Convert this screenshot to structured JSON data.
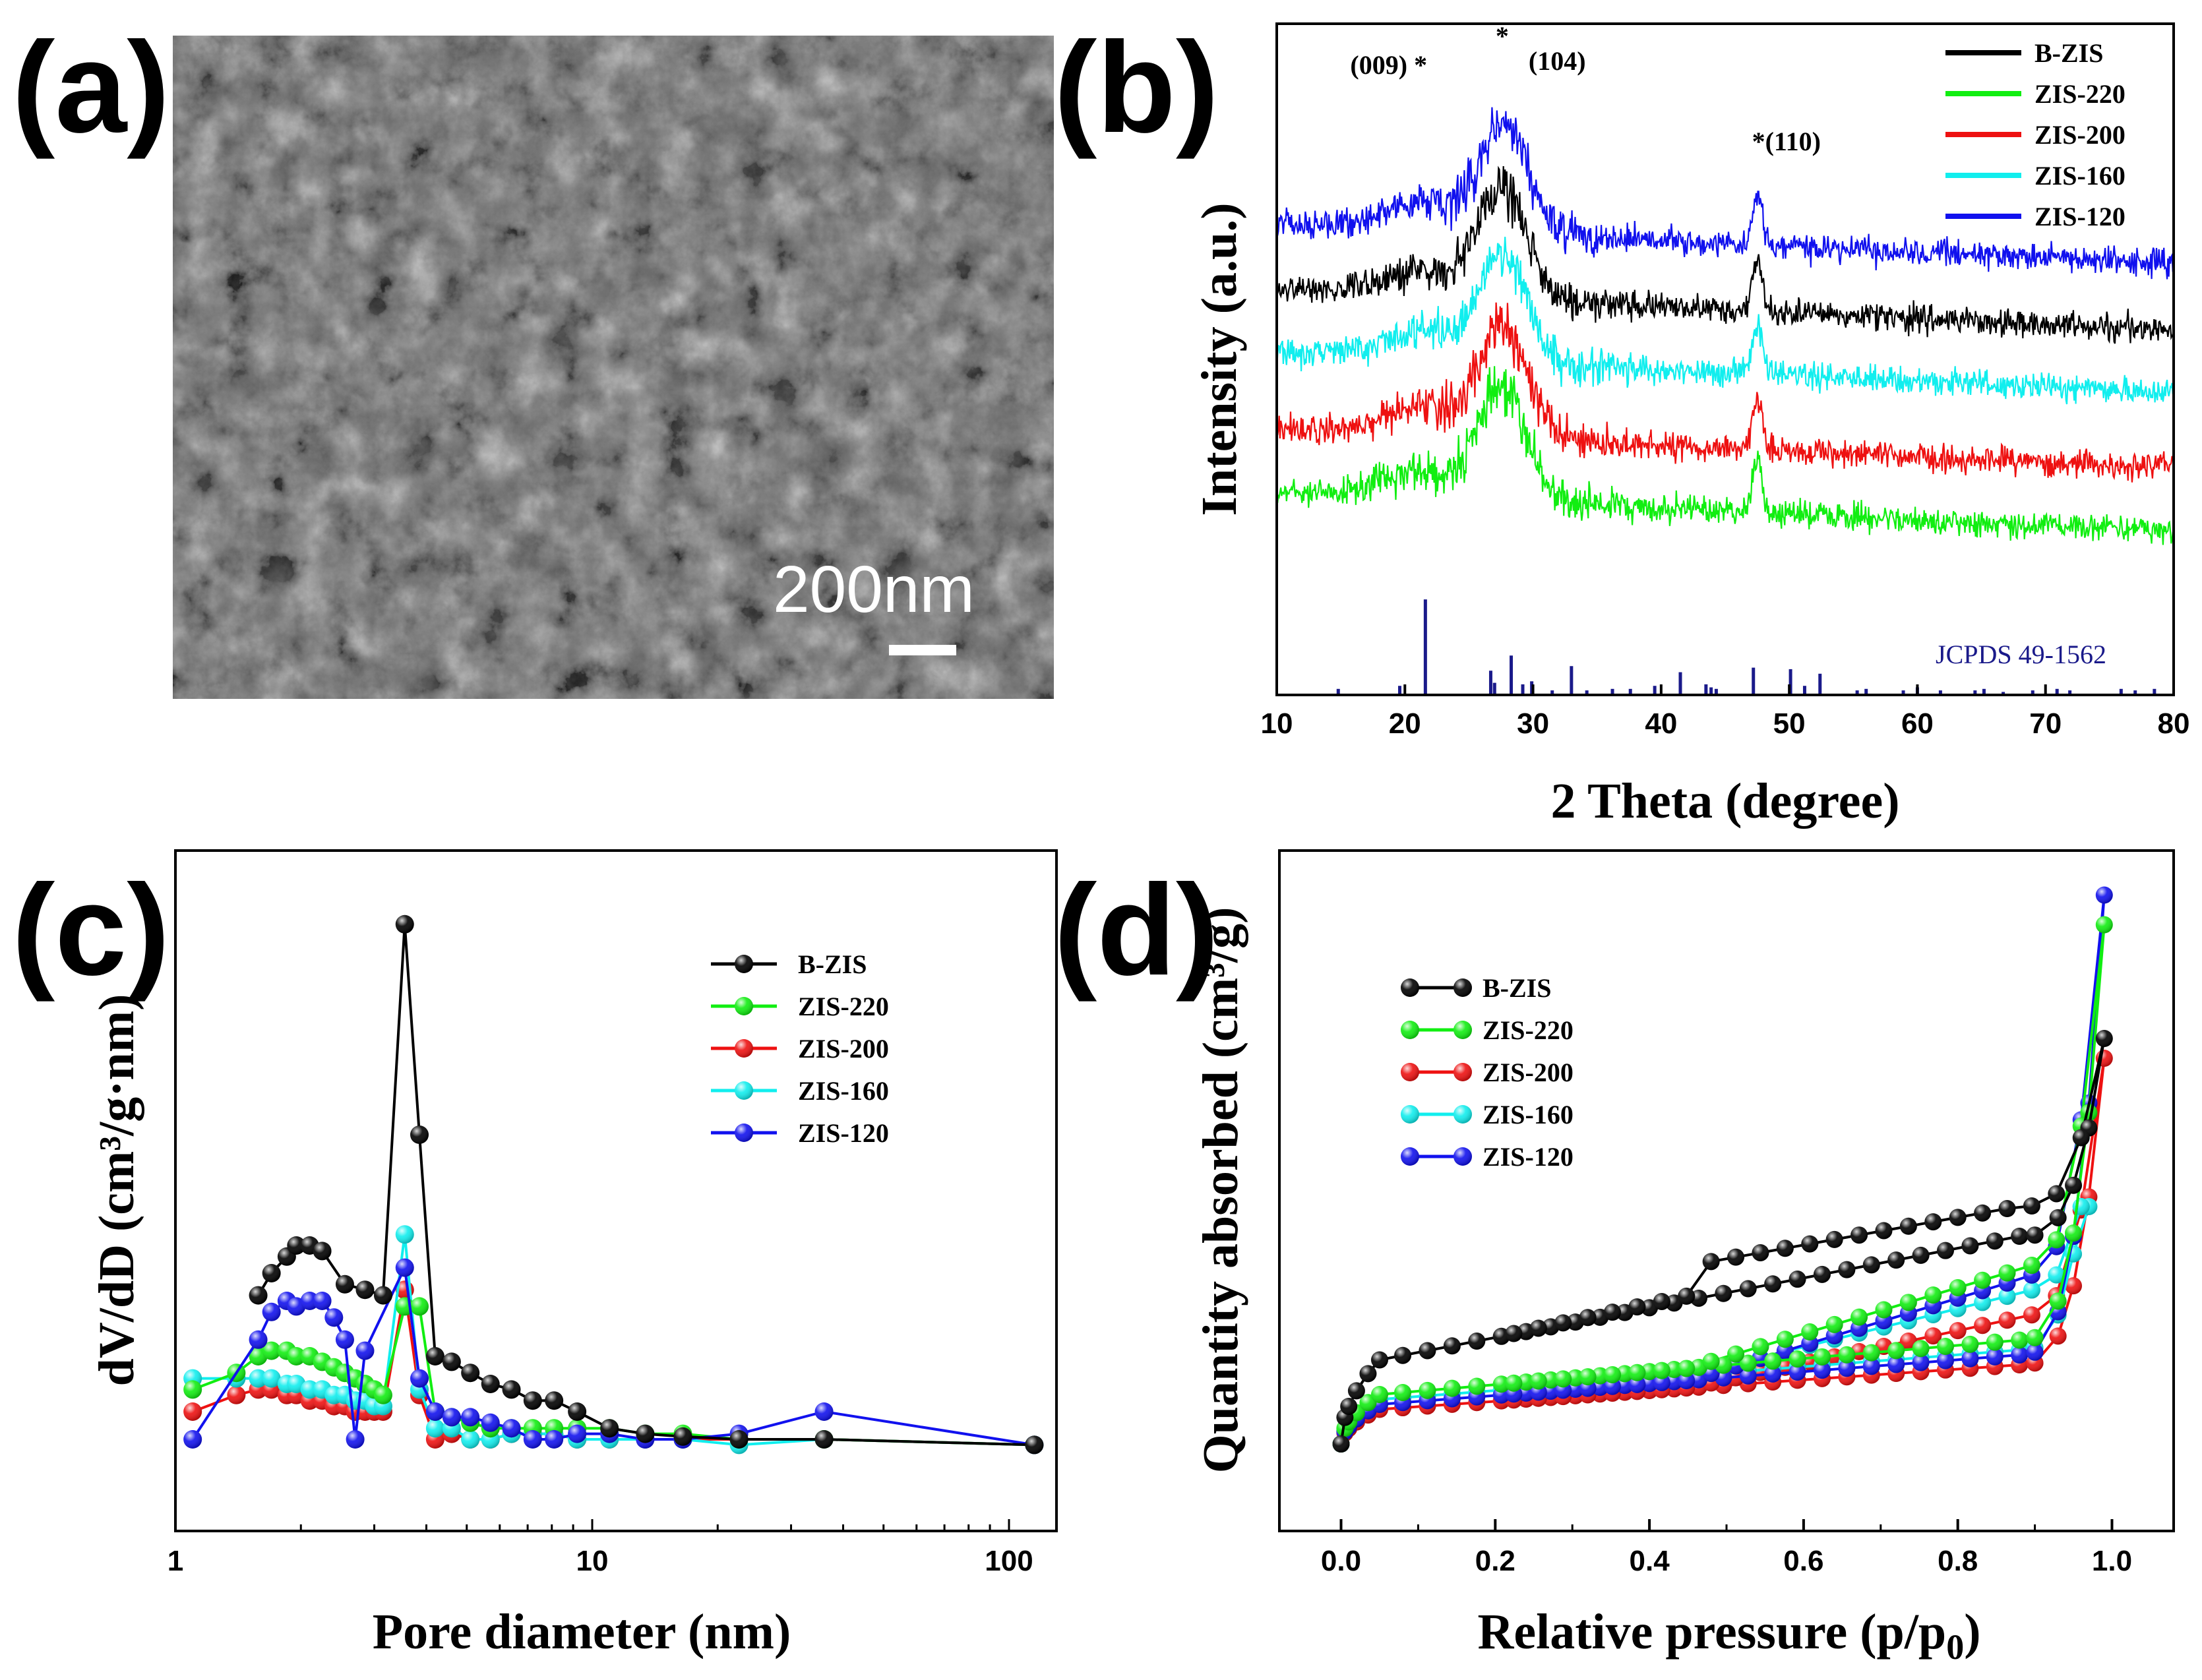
{
  "colors": {
    "B-ZIS": "#000000",
    "ZIS-220": "#11ee11",
    "ZIS-200": "#ee1111",
    "ZIS-160": "#11eeee",
    "ZIS-120": "#1111ee",
    "jcpds": "#1a1a8a"
  },
  "panels": {
    "a": {
      "label": "(a)",
      "scale_bar": "200nm",
      "image": "SEM micrograph of porous ZnIn2S4 sheets"
    },
    "b": {
      "label": "(b)"
    },
    "c": {
      "label": "(c)"
    },
    "d": {
      "label": "(d)"
    }
  },
  "chart_data": [
    {
      "id": "b",
      "type": "line",
      "title": "",
      "xlabel": "2 Theta (degree)",
      "ylabel": "Intensity (a.u.)",
      "xlim": [
        10,
        80
      ],
      "xticks": [
        10,
        20,
        30,
        40,
        50,
        60,
        70,
        80
      ],
      "legend": [
        "B-ZIS",
        "ZIS-220",
        "ZIS-200",
        "ZIS-160",
        "ZIS-120"
      ],
      "legend_position": "top-right",
      "offsets": {
        "ZIS-120": 300,
        "B-ZIS": 240,
        "ZIS-160": 175,
        "ZIS-200": 110,
        "ZIS-220": 55
      },
      "peaks": [
        {
          "center": 21.5,
          "height": 40,
          "width": 4.5
        },
        {
          "center": 27.7,
          "height": 165,
          "width": 2.6
        },
        {
          "center": 47.5,
          "height": 75,
          "width": 0.55
        }
      ],
      "baseline_drop": 60,
      "noise": 18,
      "annotations": [
        {
          "text": "(009) *",
          "x": 21.5
        },
        {
          "text": "*",
          "x": 27.7
        },
        {
          "text": "(104)",
          "x": 27.7
        },
        {
          "text": "*(110)",
          "x": 47.5
        }
      ],
      "reference": {
        "label": "JCPDS 49-1562",
        "lines": [
          {
            "x": 14.8,
            "h": 0.04
          },
          {
            "x": 19.6,
            "h": 0.06
          },
          {
            "x": 21.6,
            "h": 0.63
          },
          {
            "x": 26.7,
            "h": 0.16
          },
          {
            "x": 27.0,
            "h": 0.08
          },
          {
            "x": 28.3,
            "h": 0.26
          },
          {
            "x": 29.2,
            "h": 0.07
          },
          {
            "x": 29.9,
            "h": 0.09
          },
          {
            "x": 31.5,
            "h": 0.03
          },
          {
            "x": 33.0,
            "h": 0.19
          },
          {
            "x": 34.2,
            "h": 0.03
          },
          {
            "x": 36.2,
            "h": 0.04
          },
          {
            "x": 37.6,
            "h": 0.04
          },
          {
            "x": 39.5,
            "h": 0.06
          },
          {
            "x": 41.5,
            "h": 0.15
          },
          {
            "x": 43.5,
            "h": 0.07
          },
          {
            "x": 43.9,
            "h": 0.05
          },
          {
            "x": 44.3,
            "h": 0.04
          },
          {
            "x": 47.2,
            "h": 0.18
          },
          {
            "x": 50.1,
            "h": 0.17
          },
          {
            "x": 51.2,
            "h": 0.06
          },
          {
            "x": 52.4,
            "h": 0.14
          },
          {
            "x": 55.3,
            "h": 0.03
          },
          {
            "x": 56.0,
            "h": 0.04
          },
          {
            "x": 58.9,
            "h": 0.03
          },
          {
            "x": 60.0,
            "h": 0.05
          },
          {
            "x": 61.8,
            "h": 0.03
          },
          {
            "x": 64.5,
            "h": 0.03
          },
          {
            "x": 65.2,
            "h": 0.04
          },
          {
            "x": 66.7,
            "h": 0.02
          },
          {
            "x": 69.0,
            "h": 0.03
          },
          {
            "x": 70.9,
            "h": 0.04
          },
          {
            "x": 71.9,
            "h": 0.03
          },
          {
            "x": 75.9,
            "h": 0.04
          },
          {
            "x": 77.0,
            "h": 0.03
          },
          {
            "x": 78.5,
            "h": 0.04
          }
        ]
      }
    },
    {
      "id": "c",
      "type": "line",
      "scale": "log-x",
      "xlabel": "Pore diameter (nm)",
      "ylabel": "dV/dD (cm³/g·nm)",
      "xlim": [
        1,
        130
      ],
      "ylim": [
        0,
        100
      ],
      "xticks": [
        1,
        10,
        100
      ],
      "legend": [
        "B-ZIS",
        "ZIS-220",
        "ZIS-200",
        "ZIS-160",
        "ZIS-120"
      ],
      "legend_position": "top-right",
      "series": [
        {
          "name": "B-ZIS",
          "x": [
            1.58,
            1.7,
            1.85,
            1.95,
            2.1,
            2.25,
            2.55,
            2.85,
            3.15,
            3.55,
            3.85,
            4.2,
            4.6,
            5.1,
            5.7,
            6.4,
            7.2,
            8.1,
            9.2,
            11.0,
            13.4,
            16.5,
            22.5,
            36,
            115
          ],
          "y": [
            31,
            35,
            38,
            40,
            40,
            39,
            33,
            32,
            31,
            98,
            60,
            20,
            19,
            17,
            15,
            14,
            12,
            12,
            10,
            7,
            6,
            5.5,
            5,
            5,
            4
          ]
        },
        {
          "name": "ZIS-220",
          "x": [
            1.1,
            1.4,
            1.58,
            1.7,
            1.85,
            1.95,
            2.1,
            2.25,
            2.4,
            2.55,
            2.7,
            2.85,
            3.0,
            3.15,
            3.55,
            3.85,
            4.2,
            4.6,
            5.1,
            5.7,
            6.4,
            7.2,
            8.1,
            9.2,
            11.0,
            13.4,
            16.5,
            22.5,
            36,
            115
          ],
          "y": [
            14,
            17,
            20,
            21,
            21,
            20,
            20,
            19,
            18,
            17,
            16,
            15,
            14,
            13,
            29,
            29,
            10,
            9,
            8,
            7,
            7,
            7,
            7,
            7,
            7,
            6,
            6,
            5,
            5,
            4
          ]
        },
        {
          "name": "ZIS-200",
          "x": [
            1.1,
            1.4,
            1.58,
            1.7,
            1.85,
            1.95,
            2.1,
            2.25,
            2.4,
            2.55,
            2.7,
            2.85,
            3.0,
            3.15,
            3.55,
            3.85,
            4.2,
            4.6,
            5.1,
            5.7,
            6.4,
            7.2,
            8.1,
            9.2,
            11.0,
            13.4,
            16.5,
            22.5,
            36,
            115
          ],
          "y": [
            10,
            13,
            14,
            14,
            13,
            13,
            12,
            12,
            11,
            11,
            10,
            10,
            10,
            10,
            32,
            13,
            5,
            6,
            5,
            5,
            6,
            6,
            6,
            5,
            5,
            5,
            5,
            5,
            5,
            4
          ]
        },
        {
          "name": "ZIS-160",
          "x": [
            1.1,
            1.4,
            1.58,
            1.7,
            1.85,
            1.95,
            2.1,
            2.25,
            2.4,
            2.55,
            2.7,
            2.85,
            3.0,
            3.15,
            3.55,
            3.85,
            4.2,
            4.6,
            5.1,
            5.7,
            6.4,
            7.2,
            8.1,
            9.2,
            11.0,
            13.4,
            16.5,
            22.5,
            36,
            115
          ],
          "y": [
            16,
            16,
            16,
            16,
            15,
            15,
            14,
            14,
            13,
            13,
            12,
            12,
            11,
            11,
            42,
            14,
            7,
            7,
            5,
            5,
            6,
            6,
            6,
            5,
            5,
            5,
            5,
            4,
            5,
            4
          ]
        },
        {
          "name": "ZIS-120",
          "x": [
            1.1,
            1.58,
            1.7,
            1.85,
            1.95,
            2.1,
            2.25,
            2.4,
            2.55,
            2.7,
            2.85,
            3.55,
            3.85,
            4.2,
            4.6,
            5.1,
            5.7,
            6.4,
            7.2,
            8.1,
            9.2,
            11.0,
            13.4,
            16.5,
            22.5,
            36,
            115
          ],
          "y": [
            5,
            23,
            28,
            30,
            29,
            30,
            30,
            27,
            23,
            5,
            21,
            36,
            16,
            10,
            9,
            9,
            8,
            7,
            5,
            5,
            6,
            6,
            5,
            5,
            6,
            10,
            4
          ]
        }
      ]
    },
    {
      "id": "d",
      "type": "line",
      "xlabel": "Relative pressure (p/p₀)",
      "ylabel": "Quantity absorbed (cm³/g)",
      "xlim": [
        -0.08,
        1.08
      ],
      "ylim": [
        0,
        100
      ],
      "xticks": [
        0.0,
        0.2,
        0.4,
        0.6,
        0.8,
        1.0
      ],
      "xtick_labels": [
        "0.0",
        "0.2",
        "0.4",
        "0.6",
        "0.8",
        "1.0"
      ],
      "legend": [
        "B-ZIS",
        "ZIS-220",
        "ZIS-200",
        "ZIS-160",
        "ZIS-120"
      ],
      "legend_position": "top-left",
      "isotherms": [
        {
          "name": "B-ZIS",
          "start": 2,
          "knee": 19,
          "adsorb_end": 44,
          "top": 84,
          "desorb_end": 50,
          "step": 7,
          "step_at": 0.47,
          "top_x": 0.99
        },
        {
          "name": "ZIS-220",
          "start": 2,
          "knee": 12,
          "adsorb_end": 23,
          "top": 107,
          "desorb_end": 38,
          "step": 0,
          "step_at": 0.47,
          "top_x": 0.99
        },
        {
          "name": "ZIS-200",
          "start": 2,
          "knee": 9,
          "adsorb_end": 18,
          "top": 80,
          "desorb_end": 28,
          "step": 0,
          "step_at": 0.47,
          "top_x": 0.99
        },
        {
          "name": "ZIS-160",
          "start": 2,
          "knee": 11,
          "adsorb_end": 21,
          "top": 50,
          "desorb_end": 33,
          "step": 0,
          "step_at": 0.47,
          "top_x": 0.96
        },
        {
          "name": "ZIS-120",
          "start": 2,
          "knee": 10,
          "adsorb_end": 20,
          "top": 113,
          "desorb_end": 36,
          "step": 0,
          "step_at": 0.47,
          "top_x": 0.99
        }
      ]
    }
  ]
}
